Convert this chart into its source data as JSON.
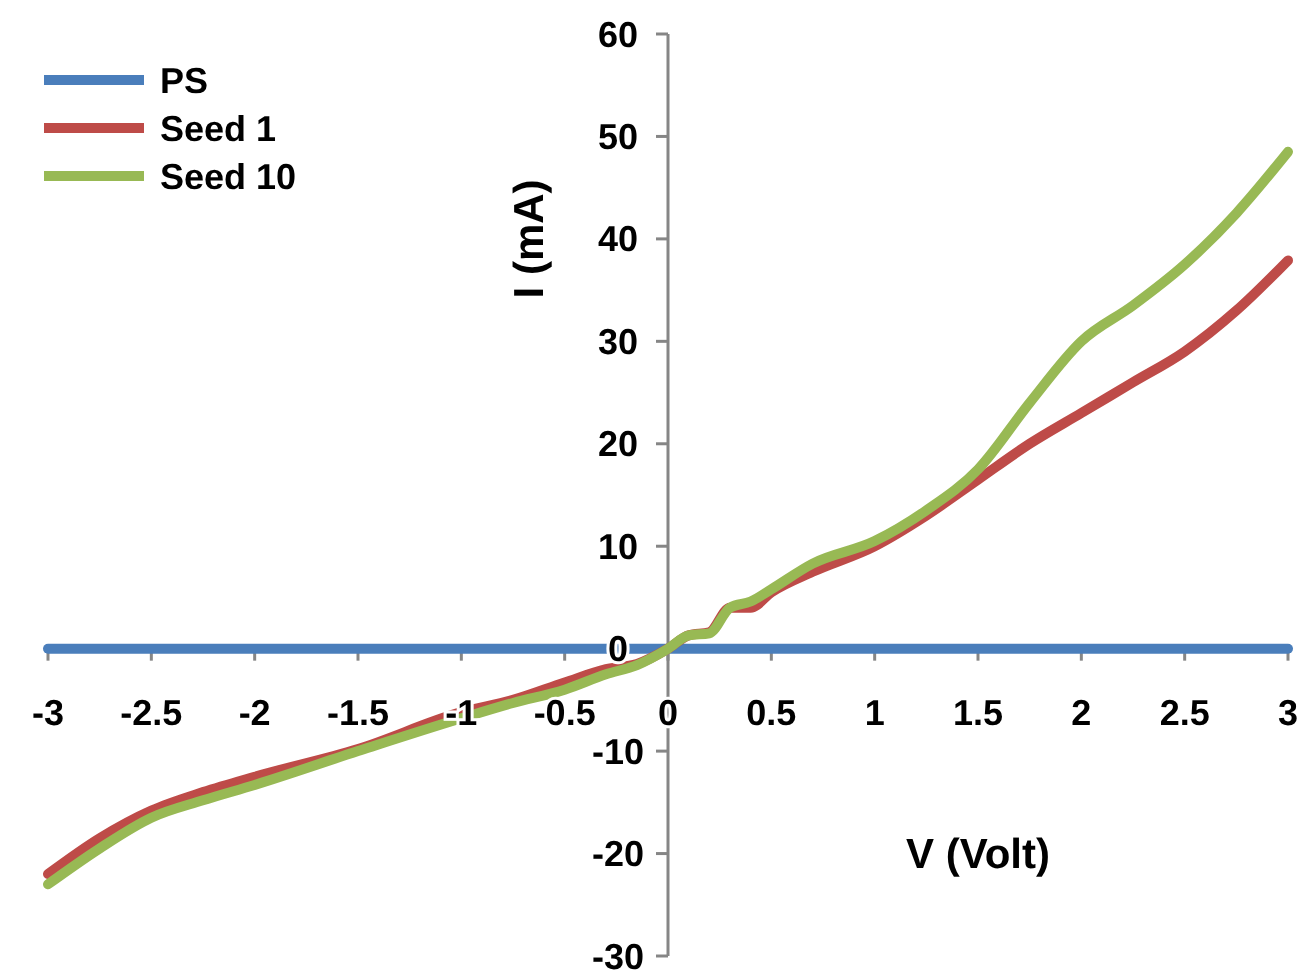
{
  "chart_data": {
    "type": "line",
    "xlabel": "V (Volt)",
    "ylabel": "I (mA)",
    "xlim": [
      -3,
      3
    ],
    "ylim": [
      -30,
      60
    ],
    "xticks": [
      -3,
      -2.5,
      -2,
      -1.5,
      -1,
      -0.5,
      0,
      0.5,
      1,
      1.5,
      2,
      2.5,
      3
    ],
    "yticks": [
      -30,
      -20,
      -10,
      0,
      10,
      20,
      30,
      40,
      50,
      60
    ],
    "legend": "top left",
    "grid": false,
    "line_style": "solid",
    "series": [
      {
        "name": "PS",
        "color": "#4a7ebb",
        "x": [
          -3,
          -2,
          -1,
          0,
          1,
          2,
          3
        ],
        "values": [
          0,
          0,
          0,
          0,
          0,
          0,
          0
        ]
      },
      {
        "name": "Seed 1",
        "color": "#be4b48",
        "x": [
          -3,
          -2.75,
          -2.5,
          -2.25,
          -2,
          -1.5,
          -1,
          -0.75,
          -0.5,
          -0.3,
          -0.15,
          0,
          0.1,
          0.2,
          0.3,
          0.4,
          0.5,
          0.7,
          1,
          1.25,
          1.5,
          1.75,
          2,
          2.25,
          2.5,
          2.75,
          3
        ],
        "values": [
          -22,
          -18.5,
          -15.8,
          -14,
          -12.5,
          -9.8,
          -6.2,
          -5,
          -3.3,
          -2,
          -1.5,
          0,
          1.3,
          1.6,
          4,
          4,
          5.5,
          7.5,
          10,
          13,
          16.5,
          20,
          23,
          26,
          29,
          33,
          37.9
        ]
      },
      {
        "name": "Seed 10",
        "color": "#98b954",
        "x": [
          -3,
          -2.75,
          -2.5,
          -2.25,
          -2,
          -1.5,
          -1,
          -0.75,
          -0.5,
          -0.3,
          -0.15,
          0,
          0.1,
          0.2,
          0.3,
          0.4,
          0.5,
          0.7,
          1,
          1.25,
          1.5,
          1.75,
          2,
          2.25,
          2.5,
          2.75,
          3
        ],
        "values": [
          -23,
          -19.5,
          -16.5,
          -14.8,
          -13.3,
          -10,
          -6.8,
          -5.3,
          -4,
          -2.5,
          -1.6,
          0,
          1.3,
          1.5,
          4,
          4.6,
          5.8,
          8.3,
          10.5,
          13.5,
          17.5,
          24,
          30,
          33.5,
          37.5,
          42.5,
          48.5
        ]
      }
    ]
  }
}
